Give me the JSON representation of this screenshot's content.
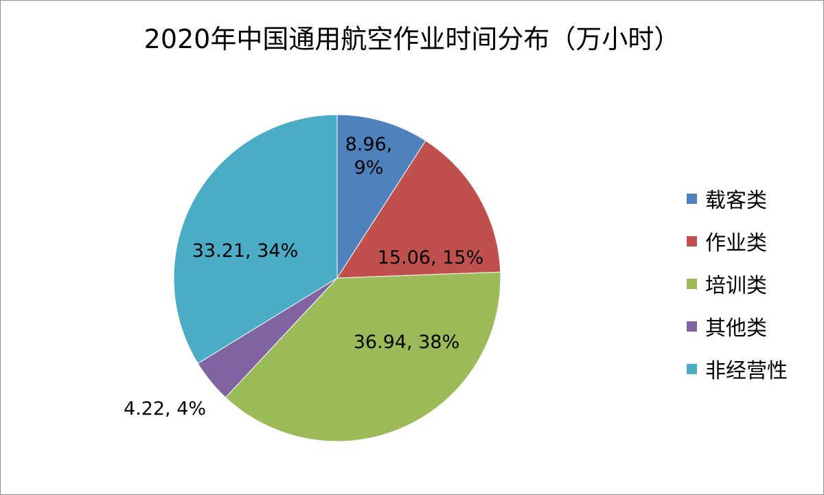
{
  "chart_data": {
    "type": "pie",
    "title": "2020年中国通用航空作业时间分布（万小时）",
    "slices": [
      {
        "name": "载客类",
        "value": 8.96,
        "percent": "9%",
        "color": "#4f81bd",
        "label_lines": [
          "8.96,",
          "9%"
        ]
      },
      {
        "name": "作业类",
        "value": 15.06,
        "percent": "15%",
        "color": "#c0504d",
        "label_lines": [
          "15.06, 15%"
        ]
      },
      {
        "name": "培训类",
        "value": 36.94,
        "percent": "38%",
        "color": "#9bbb59",
        "label_lines": [
          "36.94, 38%"
        ]
      },
      {
        "name": "其他类",
        "value": 4.22,
        "percent": "4%",
        "color": "#8064a2",
        "label_lines": [
          "4.22, 4%"
        ]
      },
      {
        "name": "非经营性",
        "value": 33.21,
        "percent": "34%",
        "color": "#4bacc6",
        "label_lines": [
          "33.21, 34%"
        ]
      }
    ],
    "legend_position": "right"
  }
}
